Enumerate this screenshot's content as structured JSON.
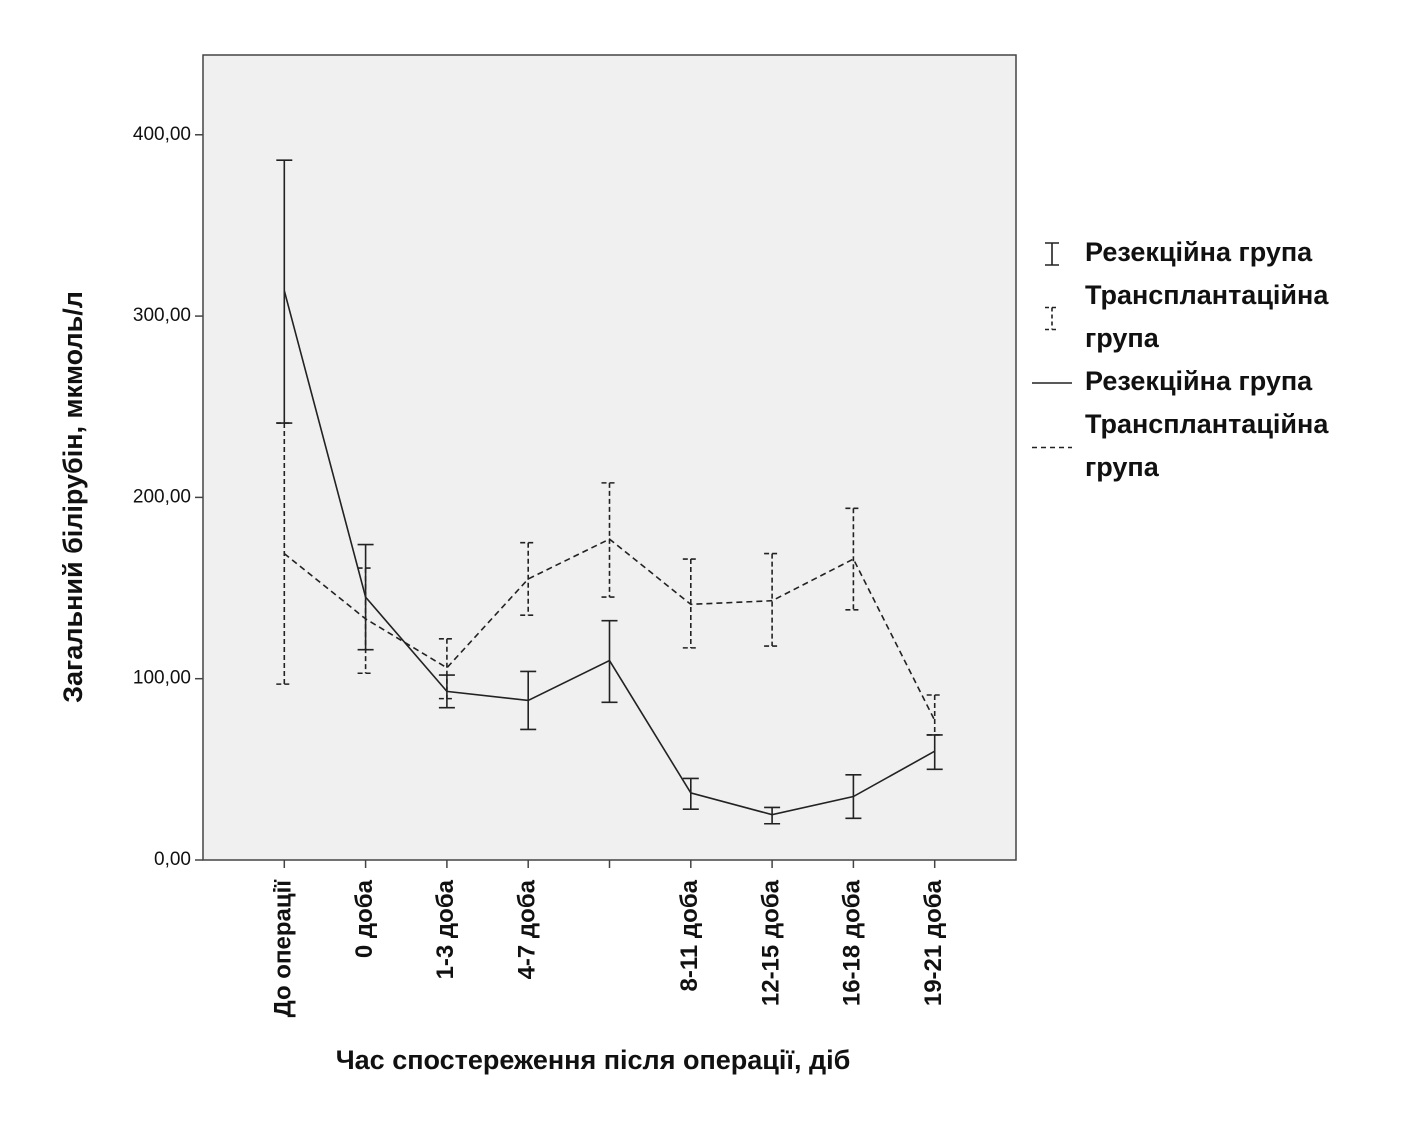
{
  "chart_data": {
    "type": "line",
    "xlabel": "Час спостереження після операції, діб",
    "ylabel": "Загальний білірубін, мкмоль/л",
    "categories": [
      "До операції",
      "0 доба",
      "1-3 доба",
      "4-7 доба",
      null,
      "8-11 доба",
      "12-15 доба",
      "16-18 доба",
      "19-21 доба"
    ],
    "ylim": [
      0,
      444
    ],
    "yticks": [
      {
        "value": 0,
        "label": "0,00"
      },
      {
        "value": 100,
        "label": "100,00"
      },
      {
        "value": 200,
        "label": "200,00"
      },
      {
        "value": 300,
        "label": "300,00"
      },
      {
        "value": 400,
        "label": "400,00"
      }
    ],
    "background": "#f0f0f0",
    "series": [
      {
        "name": "Резекційна група",
        "color": "#222222",
        "dash": "none",
        "values": [
          314,
          145,
          93,
          88,
          110,
          37,
          25,
          35,
          60
        ],
        "upper": [
          386,
          174,
          102,
          104,
          132,
          45,
          29,
          47,
          69
        ],
        "lower": [
          241,
          116,
          84,
          72,
          87,
          28,
          20,
          23,
          50
        ]
      },
      {
        "name": "Трансплантаційна група",
        "color": "#222222",
        "dash": "6,4",
        "values": [
          169,
          133,
          106,
          155,
          177,
          141,
          143,
          166,
          77
        ],
        "upper": [
          241,
          161,
          122,
          175,
          208,
          166,
          169,
          194,
          91
        ],
        "lower": [
          97,
          103,
          89,
          135,
          145,
          117,
          118,
          138,
          69
        ]
      }
    ]
  }
}
